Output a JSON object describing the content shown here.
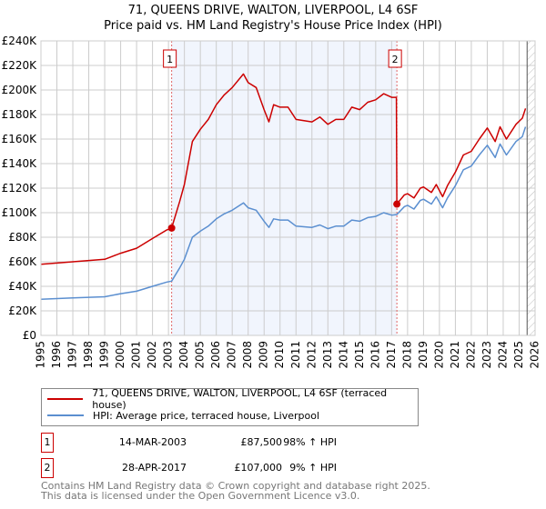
{
  "chart_data": {
    "type": "line",
    "title": "71, QUEENS DRIVE, WALTON, LIVERPOOL, L4 6SF",
    "subtitle": "Price paid vs. HM Land Registry's House Price Index (HPI)",
    "xlim": [
      1995,
      2026
    ],
    "ylim": [
      0,
      240000
    ],
    "y_ticks": [
      0,
      20000,
      40000,
      60000,
      80000,
      100000,
      120000,
      140000,
      160000,
      180000,
      200000,
      220000,
      240000
    ],
    "y_tick_labels": [
      "£0",
      "£20K",
      "£40K",
      "£60K",
      "£80K",
      "£100K",
      "£120K",
      "£140K",
      "£160K",
      "£180K",
      "£200K",
      "£220K",
      "£240K"
    ],
    "x_ticks": [
      1995,
      1996,
      1997,
      1998,
      1999,
      2000,
      2001,
      2002,
      2003,
      2004,
      2005,
      2006,
      2007,
      2008,
      2009,
      2010,
      2011,
      2012,
      2013,
      2014,
      2015,
      2016,
      2017,
      2018,
      2019,
      2020,
      2021,
      2022,
      2023,
      2024,
      2025,
      2026
    ],
    "grid": true,
    "shaded_range": [
      2003.2,
      2017.33
    ],
    "forecast_hatch_from": 2025.5,
    "series": [
      {
        "name": "71, QUEENS DRIVE, WALTON, LIVERPOOL, L4 6SF (terraced house)",
        "color": "#cc0000",
        "x": [
          1995,
          1996,
          1997,
          1998,
          1999,
          2000,
          2001,
          2002,
          2002.9,
          2003.2,
          2003.7,
          2004,
          2004.5,
          2005,
          2005.5,
          2006,
          2006.5,
          2007,
          2007.7,
          2008,
          2008.5,
          2009,
          2009.3,
          2009.6,
          2010,
          2010.5,
          2011,
          2012,
          2012.5,
          2013,
          2013.5,
          2014,
          2014.5,
          2015,
          2015.5,
          2016,
          2016.5,
          2017,
          2017.3,
          2017.33,
          2017.8,
          2018,
          2018.4,
          2018.8,
          2019,
          2019.5,
          2019.8,
          2020.2,
          2020.5,
          2021,
          2021.5,
          2022,
          2022.5,
          2023,
          2023.5,
          2023.8,
          2024.2,
          2024.8,
          2025.2,
          2025.4
        ],
        "values": [
          58000,
          59000,
          60000,
          61000,
          62000,
          67000,
          71000,
          79000,
          86000,
          87500,
          109000,
          123000,
          158000,
          168000,
          176000,
          188000,
          196000,
          202000,
          213000,
          206000,
          202000,
          184000,
          174000,
          188000,
          186000,
          186000,
          176000,
          174000,
          178000,
          172000,
          176000,
          176000,
          186000,
          184000,
          190000,
          192000,
          197000,
          194000,
          194000,
          107000,
          114500,
          115500,
          112000,
          120000,
          121000,
          116500,
          123000,
          113000,
          122000,
          133000,
          147000,
          150000,
          160000,
          169000,
          158000,
          170000,
          160000,
          172000,
          177000,
          185000
        ]
      },
      {
        "name": "HPI: Average price, terraced house, Liverpool",
        "color": "#5b8fd0",
        "x": [
          1995,
          1996,
          1997,
          1998,
          1999,
          2000,
          2001,
          2002,
          2002.9,
          2003.2,
          2003.7,
          2004,
          2004.5,
          2005,
          2005.5,
          2006,
          2006.5,
          2007,
          2007.7,
          2008,
          2008.5,
          2009,
          2009.3,
          2009.6,
          2010,
          2010.5,
          2011,
          2012,
          2012.5,
          2013,
          2013.5,
          2014,
          2014.5,
          2015,
          2015.5,
          2016,
          2016.5,
          2017,
          2017.33,
          2017.8,
          2018,
          2018.4,
          2018.8,
          2019,
          2019.5,
          2019.8,
          2020.2,
          2020.5,
          2021,
          2021.5,
          2022,
          2022.5,
          2023,
          2023.5,
          2023.8,
          2024.2,
          2024.8,
          2025.2,
          2025.4
        ],
        "values": [
          29500,
          30000,
          30500,
          31000,
          31500,
          34000,
          36000,
          40000,
          43500,
          44200,
          55000,
          62000,
          80000,
          85000,
          89000,
          95000,
          99000,
          102000,
          108000,
          104000,
          102000,
          93000,
          88000,
          95000,
          94000,
          94000,
          89000,
          88000,
          90000,
          87000,
          89000,
          89000,
          94000,
          93000,
          96000,
          97000,
          100000,
          98000,
          98500,
          105000,
          106000,
          103000,
          110000,
          111000,
          107000,
          113000,
          104000,
          112000,
          122000,
          135000,
          138000,
          147000,
          155000,
          145000,
          156000,
          147000,
          158000,
          162000,
          170000
        ]
      }
    ],
    "sales": [
      {
        "label": "1",
        "date": "14-MAR-2003",
        "x": 2003.2,
        "price": 87500,
        "price_text": "£87,500",
        "hpi_text": "98% ↑ HPI"
      },
      {
        "label": "2",
        "date": "28-APR-2017",
        "x": 2017.33,
        "price": 107000,
        "price_text": "£107,000",
        "hpi_text": "9% ↑ HPI"
      }
    ]
  },
  "legend": {
    "property": "71, QUEENS DRIVE, WALTON, LIVERPOOL, L4 6SF (terraced house)",
    "hpi": "HPI: Average price, terraced house, Liverpool"
  },
  "footer": {
    "line1": "Contains HM Land Registry data © Crown copyright and database right 2025.",
    "line2": "This data is licensed under the Open Government Licence v3.0."
  }
}
